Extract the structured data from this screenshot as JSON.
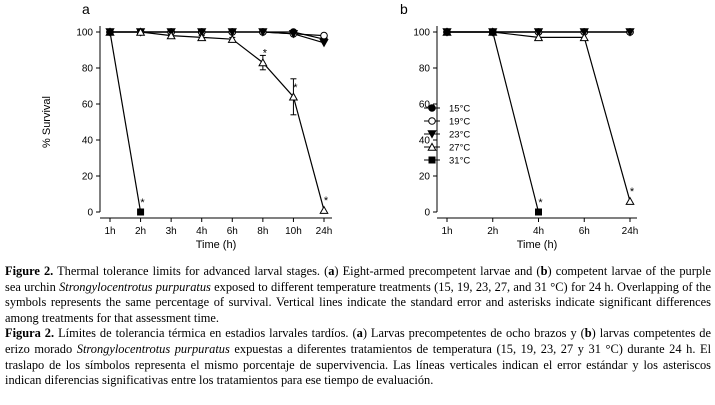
{
  "chart_data": [
    {
      "type": "line",
      "panel": "a",
      "ylabel": "% Survival",
      "xlabel": "Time (h)",
      "ylim": [
        0,
        100
      ],
      "yticks": [
        "0",
        "20",
        "40",
        "60",
        "80",
        "100"
      ],
      "categories": [
        "1h",
        "2h",
        "3h",
        "4h",
        "6h",
        "8h",
        "10h",
        "24h"
      ],
      "series": [
        {
          "name": "15°C",
          "marker": "filled-circle",
          "x": [
            "1h",
            "2h",
            "3h",
            "4h",
            "6h",
            "8h",
            "10h",
            "24h"
          ],
          "values": [
            100,
            100,
            100,
            100,
            100,
            100,
            100,
            96
          ]
        },
        {
          "name": "19°C",
          "marker": "open-circle",
          "x": [
            "1h",
            "2h",
            "3h",
            "4h",
            "6h",
            "8h",
            "10h",
            "24h"
          ],
          "values": [
            100,
            100,
            100,
            100,
            100,
            100,
            99,
            98
          ]
        },
        {
          "name": "23°C",
          "marker": "filled-triangle-down",
          "x": [
            "1h",
            "2h",
            "3h",
            "4h",
            "6h",
            "8h",
            "10h",
            "24h"
          ],
          "values": [
            100,
            100,
            100,
            100,
            100,
            100,
            99,
            94
          ]
        },
        {
          "name": "27°C",
          "marker": "open-triangle-up",
          "x": [
            "1h",
            "2h",
            "3h",
            "4h",
            "6h",
            "8h",
            "10h",
            "24h"
          ],
          "values": [
            100,
            100,
            98,
            97,
            96,
            83,
            64,
            1
          ],
          "errors": [
            0,
            0,
            1,
            1,
            1,
            4,
            10,
            0
          ]
        },
        {
          "name": "31°C",
          "marker": "filled-square",
          "x": [
            "1h",
            "2h"
          ],
          "values": [
            100,
            0
          ]
        }
      ],
      "annotations": [
        {
          "text": "*",
          "x": "2h",
          "y": 0
        },
        {
          "text": "*",
          "x": "8h",
          "y": 83
        },
        {
          "text": "*",
          "x": "10h",
          "y": 64
        },
        {
          "text": "*",
          "x": "24h",
          "y": 1
        }
      ]
    },
    {
      "type": "line",
      "panel": "b",
      "xlabel": "Time (h)",
      "ylim": [
        0,
        100
      ],
      "yticks": [
        "0",
        "20",
        "40",
        "60",
        "80",
        "100"
      ],
      "categories": [
        "1h",
        "2h",
        "4h",
        "6h",
        "24h"
      ],
      "legend_position": "center-left",
      "series": [
        {
          "name": "15°C",
          "marker": "filled-circle",
          "x": [
            "1h",
            "2h",
            "4h",
            "6h",
            "24h"
          ],
          "values": [
            100,
            100,
            100,
            100,
            100
          ]
        },
        {
          "name": "19°C",
          "marker": "open-circle",
          "x": [
            "1h",
            "2h",
            "4h",
            "6h",
            "24h"
          ],
          "values": [
            100,
            100,
            100,
            100,
            100
          ]
        },
        {
          "name": "23°C",
          "marker": "filled-triangle-down",
          "x": [
            "1h",
            "2h",
            "4h",
            "6h",
            "24h"
          ],
          "values": [
            100,
            100,
            100,
            100,
            100
          ]
        },
        {
          "name": "27°C",
          "marker": "open-triangle-up",
          "x": [
            "1h",
            "2h",
            "4h",
            "6h",
            "24h"
          ],
          "values": [
            100,
            100,
            97,
            97,
            6
          ]
        },
        {
          "name": "31°C",
          "marker": "filled-square",
          "x": [
            "1h",
            "2h",
            "4h"
          ],
          "values": [
            100,
            100,
            0
          ]
        }
      ],
      "annotations": [
        {
          "text": "*",
          "x": "4h",
          "y": 0
        },
        {
          "text": "*",
          "x": "24h",
          "y": 6
        }
      ]
    }
  ],
  "caption": {
    "en_label": "Figure 2.",
    "en_text_1": " Thermal tolerance limits for advanced larval stages. (",
    "en_a": "a",
    "en_text_2": ") Eight-armed precompetent larvae and (",
    "en_b": "b",
    "en_text_3": ") competent larvae of the purple sea urchin ",
    "en_species": "Strongylocentrotus purpuratus",
    "en_text_4": " exposed to different temperature treatments (15, 19, 23, 27, and 31 °C) for 24 h. Overlapping of the symbols represents the same percentage of survival. Vertical lines indicate the standard error and asterisks indicate significant differences among treatments for that assessment time.",
    "es_label": "Figura 2.",
    "es_text_1": " Límites de tolerancia térmica en estadios larvales tardíos. (",
    "es_a": "a",
    "es_text_2": ") Larvas precompetentes de ocho brazos y (",
    "es_b": "b",
    "es_text_3": ") larvas competentes de erizo morado ",
    "es_species": "Strongylocentrotus purpuratus",
    "es_text_4": " expuestas a diferentes tratamientos de temperatura (15, 19, 23, 27 y 31 °C) durante 24 h. El traslapo de los símbolos representa el mismo porcentaje de supervivencia. Las líneas verticales indican el error estándar y los asteriscos indican diferencias significativas entre los tratamientos para ese tiempo de evaluación."
  }
}
